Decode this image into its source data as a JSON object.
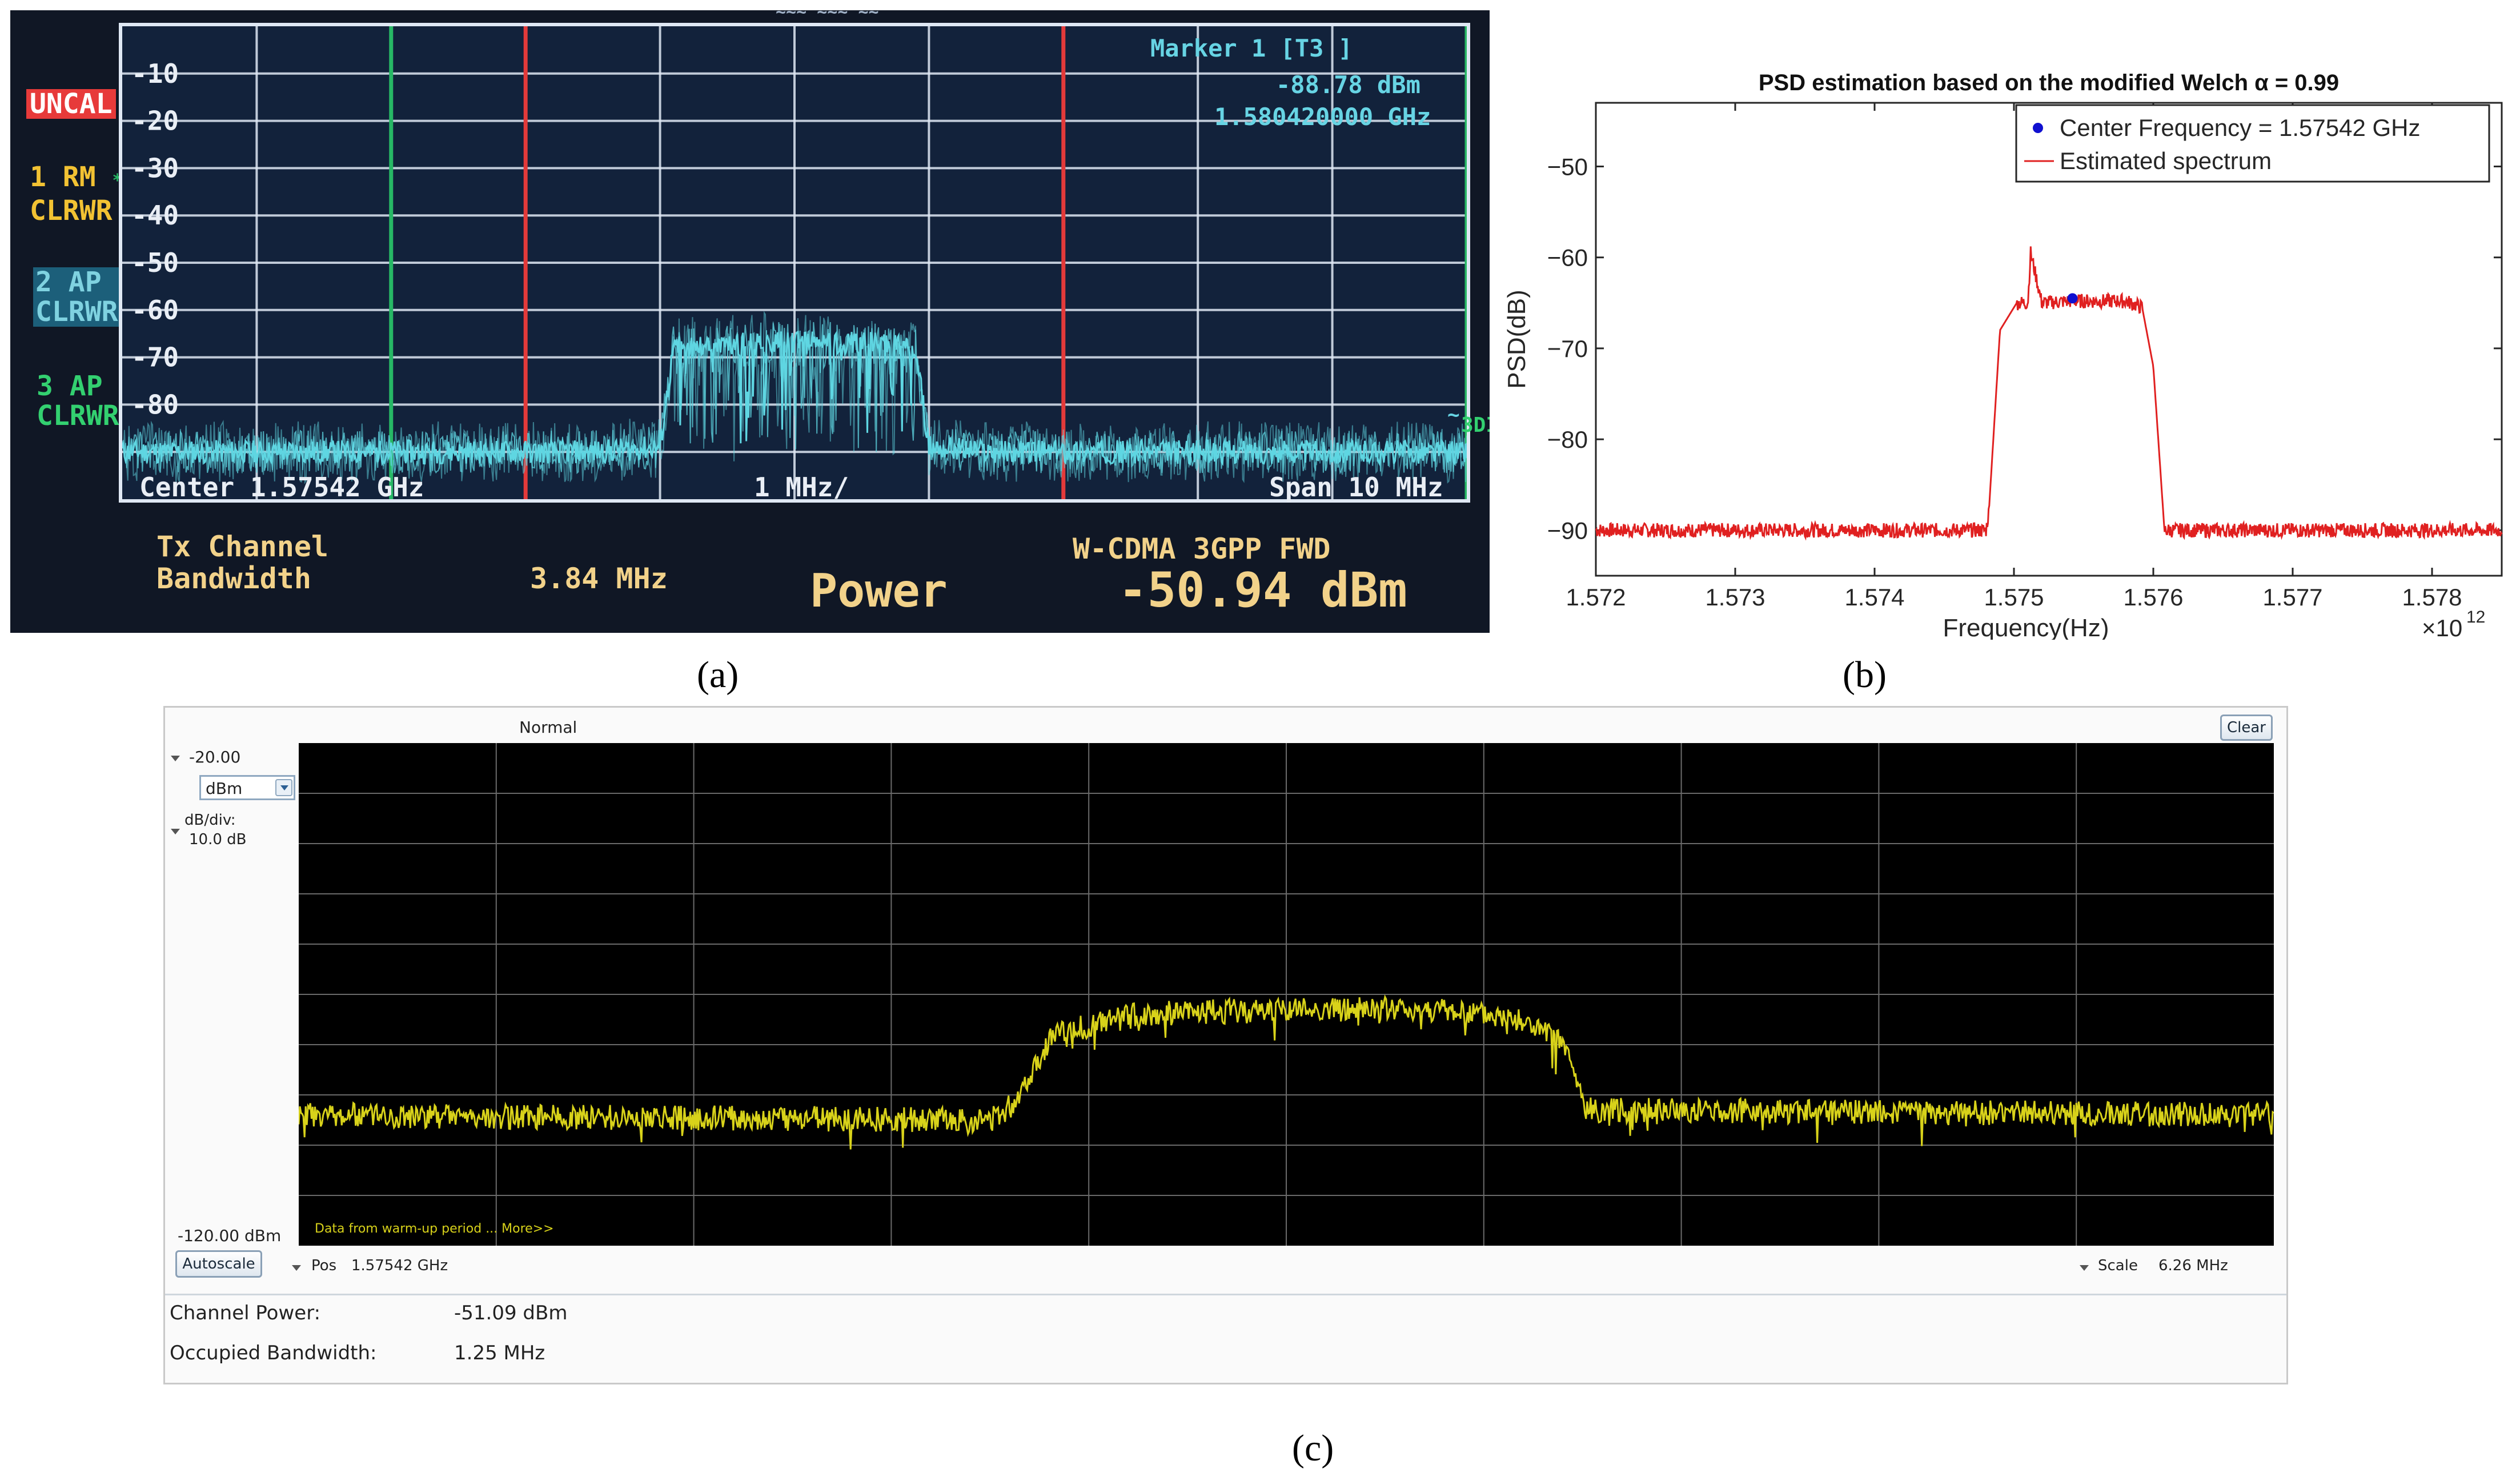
{
  "labels": {
    "a": "(a)",
    "b": "(b)",
    "c": "(c)"
  },
  "colors": {
    "a_background": "#101725",
    "a_grid": "#dfe8f4",
    "a_trace": "#5fd6e2",
    "a_text_cyan": "#67d4e4",
    "a_text_white": "#e9eef5",
    "marker_green": "#27b865",
    "marker_red": "#e33a3a",
    "b_trace": "#e02020",
    "b_marker": "#1010d0",
    "c_trace": "#d8d21a",
    "c_plot_bg": "#000000"
  },
  "panel_a": {
    "side_labels": {
      "uncal": "UNCAL",
      "t1_line1": "1 RM",
      "t1_mark": "*",
      "t1_line2": "CLRWR",
      "t2_line1": "2 AP",
      "t2_line2": "CLRWR",
      "t3_line1": "3 AP",
      "t3_line2": "CLRWR"
    },
    "top_fragment": "~~~ ~~~ ~~",
    "marker_title": "Marker 1 [T3 ]",
    "marker_level": "-88.78 dBm",
    "marker_freq": "1.580420000 GHz",
    "right_edge_label": "3DI",
    "right_edge_small": "~",
    "center_label": "Center 1.57542 GHz",
    "div_label": "1 MHz/",
    "span_label": "Span 10 MHz",
    "tx_channel": "Tx Channel",
    "bandwidth_label": "Bandwidth",
    "bandwidth_value": "3.84 MHz",
    "standard": "W-CDMA 3GPP FWD",
    "power_label": "Power",
    "power_value": "-50.94 dBm"
  },
  "panel_b": {
    "multiplier_base": "×10",
    "multiplier_exp": "12"
  },
  "panel_c": {
    "mode_label": "Normal",
    "clear_button": "Clear",
    "ref_level": "-20.00",
    "unit_select": "dBm",
    "scale_label": "dB/div:",
    "scale_value": "10.0 dB",
    "bottom_level": "-120.00 dBm",
    "warmup_note": "Data from warm-up period ... More>>",
    "autoscale_button": "Autoscale",
    "pos_label": "Pos",
    "pos_value": "1.57542 GHz",
    "span_label": "Scale",
    "span_value": "6.26 MHz",
    "channel_power_label": "Channel Power:",
    "channel_power_value": "-51.09 dBm",
    "occupied_bw_label": "Occupied Bandwidth:",
    "occupied_bw_value": "1.25 MHz"
  },
  "chart_data": [
    {
      "id": "a",
      "type": "line",
      "y_ticks": [
        "-10",
        "-20",
        "-30",
        "-40",
        "-50",
        "-60",
        "-70",
        "-80"
      ],
      "ylim": [
        -100,
        0
      ],
      "xlim": [
        1.57042,
        1.58042
      ],
      "grid": true,
      "marker_lines_green": [
        1.57242,
        1.58042
      ],
      "marker_lines_red": [
        1.57342,
        1.57742
      ],
      "series": [
        {
          "x": [
            1.57042,
            1.57392,
            1.57442,
            1.57452,
            1.57522,
            1.57592,
            1.57632,
            1.57642,
            1.57692,
            1.58042
          ],
          "y": [
            -90,
            -90,
            -89,
            -68,
            -67,
            -67,
            -68,
            -89,
            -90,
            -90
          ]
        }
      ]
    },
    {
      "id": "b",
      "type": "line",
      "title": "PSD estimation based on the modified Welch α = 0.99",
      "xlabel": "Frequency(Hz)",
      "ylabel": "PSD(dB)",
      "x_ticks": [
        "1.572",
        "1.573",
        "1.574",
        "1.575",
        "1.576",
        "1.577",
        "1.578"
      ],
      "y_ticks": [
        "−50",
        "−60",
        "−70",
        "−80",
        "−90"
      ],
      "xlim": [
        1.572,
        1.5785
      ],
      "ylim": [
        -95,
        -43
      ],
      "grid": false,
      "legend_position": "top-right",
      "series": [
        {
          "name": "Center Frequency = 1.57542 GHz",
          "type": "scatter",
          "x": [
            1.57542
          ],
          "y": [
            -64.5
          ]
        },
        {
          "name": "Estimated spectrum",
          "type": "line",
          "x": [
            1.572,
            1.5748,
            1.57482,
            1.5749,
            1.57502,
            1.5751,
            1.57512,
            1.5752,
            1.5754,
            1.5758,
            1.57592,
            1.576,
            1.57608,
            1.5785
          ],
          "y": [
            -90,
            -90,
            -88,
            -68,
            -65,
            -65,
            -59.5,
            -65,
            -64.8,
            -64.8,
            -65.5,
            -72,
            -90,
            -90
          ]
        }
      ]
    },
    {
      "id": "c",
      "type": "line",
      "ylim": [
        -120,
        -20
      ],
      "xlim": [
        1.57229,
        1.57855
      ],
      "grid": true,
      "series": [
        {
          "x": [
            1.57229,
            1.57448,
            1.57455,
            1.57468,
            1.57495,
            1.57542,
            1.57589,
            1.57616,
            1.5763,
            1.57637,
            1.57855
          ],
          "y": [
            -94,
            -95,
            -92,
            -78,
            -74,
            -73,
            -73,
            -75,
            -80,
            -93,
            -94
          ]
        }
      ]
    }
  ]
}
